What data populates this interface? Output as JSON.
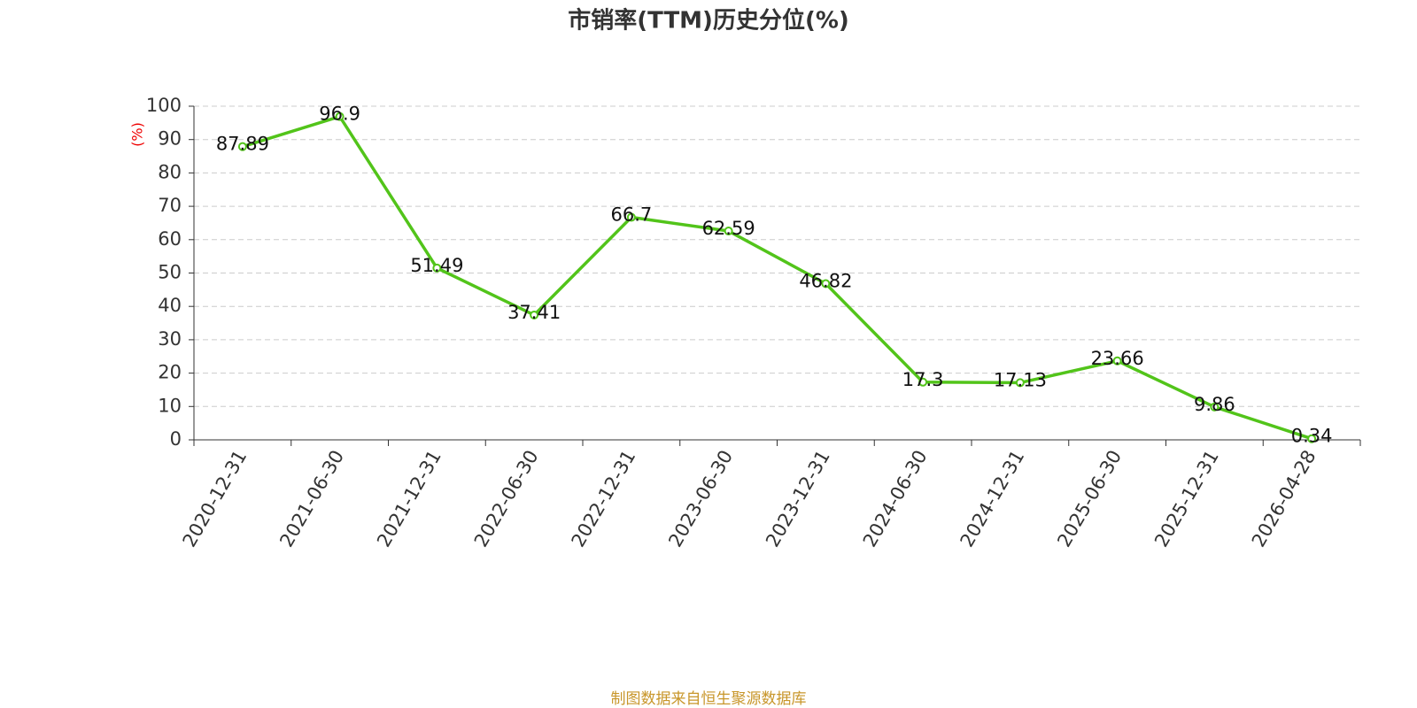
{
  "chart_data": {
    "type": "line",
    "title": "市销率(TTM)历史分位(%)",
    "y_label": "(%)",
    "categories": [
      "2020-12-31",
      "2021-06-30",
      "2021-12-31",
      "2022-06-30",
      "2022-12-31",
      "2023-06-30",
      "2023-12-31",
      "2024-06-30",
      "2024-12-31",
      "2025-06-30",
      "2025-12-31",
      "2026-04-28"
    ],
    "values": [
      87.89,
      96.9,
      51.49,
      37.41,
      66.7,
      62.59,
      46.82,
      17.3,
      17.13,
      23.66,
      9.86,
      0.34
    ],
    "color": "#52c41a",
    "ylim": [
      0,
      100
    ],
    "yticks": [
      0,
      10,
      20,
      30,
      40,
      50,
      60,
      70,
      80,
      90,
      100
    ],
    "grid": true,
    "source": "制图数据来自恒生聚源数据库"
  }
}
